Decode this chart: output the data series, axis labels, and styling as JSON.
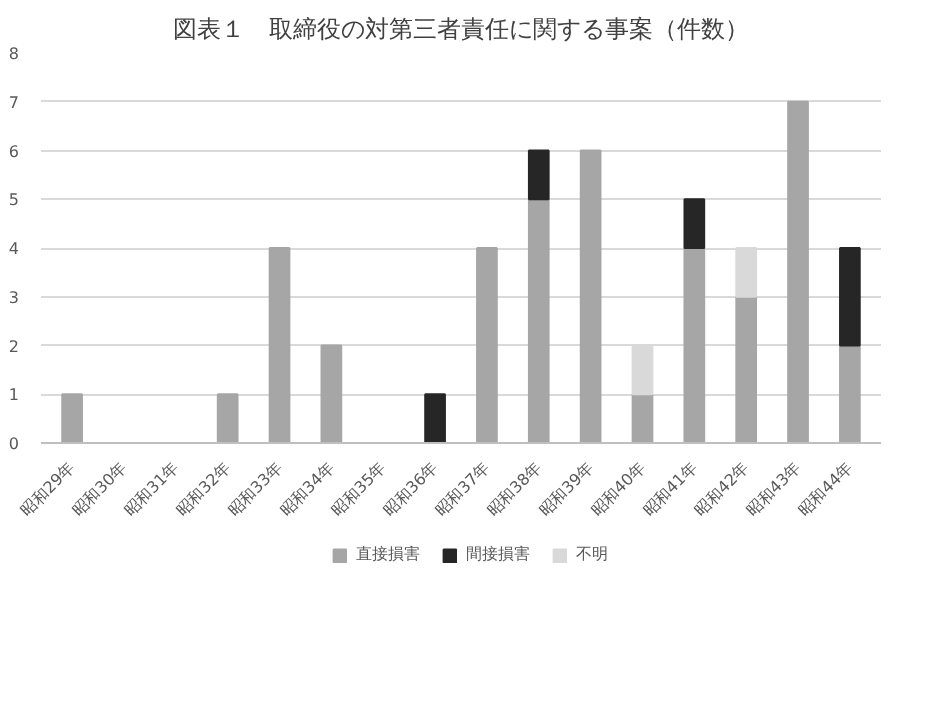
{
  "chart_data": {
    "type": "bar",
    "title": "図表１　取締役の対第三者責任に関する事案（件数）",
    "categories": [
      "昭和29年",
      "昭和30年",
      "昭和31年",
      "昭和32年",
      "昭和33年",
      "昭和34年",
      "昭和35年",
      "昭和36年",
      "昭和37年",
      "昭和38年",
      "昭和39年",
      "昭和40年",
      "昭和41年",
      "昭和42年",
      "昭和43年",
      "昭和44年"
    ],
    "stacked": true,
    "series": [
      {
        "name": "直接損害",
        "color": "#a6a6a6",
        "values": [
          1,
          0,
          0,
          1,
          4,
          2,
          0,
          0,
          4,
          5,
          6,
          1,
          4,
          3,
          7,
          2
        ]
      },
      {
        "name": "間接損害",
        "color": "#262626",
        "values": [
          0,
          0,
          0,
          0,
          0,
          0,
          0,
          1,
          0,
          1,
          0,
          0,
          1,
          0,
          0,
          2
        ]
      },
      {
        "name": "不明",
        "color": "#d9d9d9",
        "values": [
          0,
          0,
          0,
          0,
          0,
          0,
          0,
          0,
          0,
          0,
          0,
          1,
          0,
          1,
          0,
          0
        ]
      }
    ],
    "ylim": [
      0,
      8
    ],
    "yticks": [
      0,
      1,
      2,
      3,
      4,
      5,
      6,
      7,
      8
    ],
    "grid": "y",
    "legend": "bottom"
  }
}
